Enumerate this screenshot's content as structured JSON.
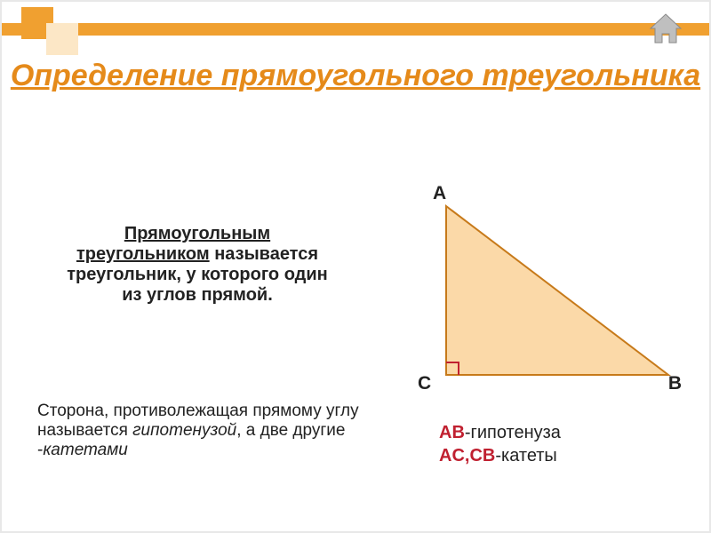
{
  "title": {
    "text": "Определение прямоугольного треугольника",
    "color": "#e58a1a",
    "fontsize": 34
  },
  "definition": {
    "underlined": "Прямоугольным треугольником",
    "rest": " называется треугольник, у которого один из углов прямой."
  },
  "side_note": {
    "part1": "Сторона, противолежащая прямому углу называется ",
    "hyp": "гипотенузой",
    "part2": ", а две другие -",
    "kat": "катетами"
  },
  "triangle": {
    "points": {
      "A": [
        50,
        20
      ],
      "B": [
        300,
        210
      ],
      "C": [
        50,
        210
      ]
    },
    "fill": "#fbd9a8",
    "stroke": "#c77a1a",
    "stroke_width": 2,
    "right_angle_marker": {
      "size": 14,
      "color": "#c02030"
    },
    "labels": {
      "A": "A",
      "B": "B",
      "C": "C"
    },
    "label_fontsize": 21
  },
  "legend": {
    "hyp_side": "AB",
    "hyp_text": "-гипотенуза",
    "kat_sides": "AC,CB",
    "kat_text": "-катеты"
  },
  "decor": {
    "bar_color": "#f0a030",
    "square_light": "#fce7c6",
    "home_icon_color": "#b0b0b0"
  }
}
